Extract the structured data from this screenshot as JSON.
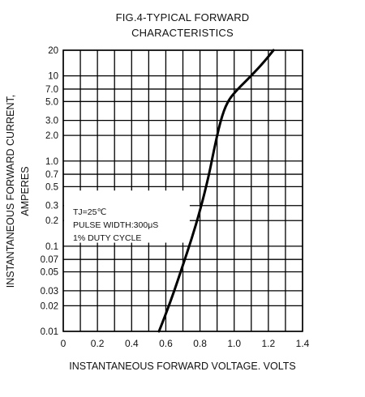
{
  "chart_data": {
    "type": "line",
    "title_line1": "FIG.4-TYPICAL FORWARD",
    "title_line2": "CHARACTERISTICS",
    "xlabel": "INSTANTANEOUS FORWARD VOLTAGE. VOLTS",
    "ylabel_line1": "INSTANTANEOUS FORWARD CURRENT,",
    "ylabel_line2": "AMPERES",
    "xlim": [
      0,
      1.4
    ],
    "ylim": [
      0.01,
      20
    ],
    "y_scale": "log",
    "x_ticks": [
      {
        "value": 0,
        "label": "0"
      },
      {
        "value": 0.2,
        "label": "0.2"
      },
      {
        "value": 0.4,
        "label": "0.4"
      },
      {
        "value": 0.6,
        "label": "0.6"
      },
      {
        "value": 0.8,
        "label": "0.8"
      },
      {
        "value": 1.0,
        "label": "1.0"
      },
      {
        "value": 1.2,
        "label": "1.2"
      },
      {
        "value": 1.4,
        "label": "1.4"
      }
    ],
    "y_ticks": [
      {
        "value": 20,
        "label": "20"
      },
      {
        "value": 10,
        "label": "10"
      },
      {
        "value": 7,
        "label": "7.0"
      },
      {
        "value": 5,
        "label": "5.0"
      },
      {
        "value": 3,
        "label": "3.0"
      },
      {
        "value": 2,
        "label": "2.0"
      },
      {
        "value": 1,
        "label": "1.0"
      },
      {
        "value": 0.7,
        "label": "0.7"
      },
      {
        "value": 0.5,
        "label": "0.5"
      },
      {
        "value": 0.3,
        "label": "0.3"
      },
      {
        "value": 0.2,
        "label": "0.2"
      },
      {
        "value": 0.1,
        "label": "0.1"
      },
      {
        "value": 0.07,
        "label": "0.07"
      },
      {
        "value": 0.05,
        "label": "0.05"
      },
      {
        "value": 0.03,
        "label": "0.03"
      },
      {
        "value": 0.02,
        "label": "0.02"
      },
      {
        "value": 0.01,
        "label": "0.01"
      }
    ],
    "x_grid": [
      0,
      0.1,
      0.2,
      0.3,
      0.4,
      0.5,
      0.6,
      0.7,
      0.8,
      0.9,
      1.0,
      1.1,
      1.2,
      1.3,
      1.4
    ],
    "y_grid": [
      0.01,
      0.02,
      0.03,
      0.05,
      0.07,
      0.1,
      0.2,
      0.3,
      0.5,
      0.7,
      1,
      2,
      3,
      5,
      7,
      10,
      20
    ],
    "grid": true,
    "series": [
      {
        "x": [
          0.56,
          0.6,
          0.65,
          0.7,
          0.75,
          0.8,
          0.85,
          0.88,
          0.92,
          0.96,
          1.02,
          1.1,
          1.18,
          1.23
        ],
        "y": [
          0.01,
          0.016,
          0.03,
          0.06,
          0.12,
          0.26,
          0.65,
          1.3,
          3.0,
          5.0,
          7.0,
          10.0,
          15.0,
          20.0
        ]
      }
    ],
    "annotation": {
      "lines": [
        "TJ=25℃",
        "PULSE WIDTH:300μS",
        "1% DUTY CYCLE"
      ],
      "position": "lower-left"
    },
    "line_color": "#000000",
    "grid_color": "#000000"
  }
}
